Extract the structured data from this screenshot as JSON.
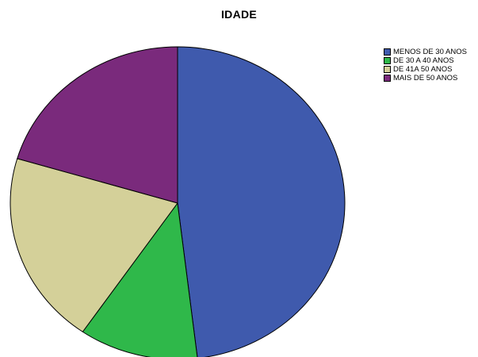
{
  "chart_data": {
    "type": "pie",
    "title": "IDADE",
    "slices": [
      {
        "label": "MENOS DE 30 ANOS",
        "value": 48.1,
        "color": "#3F5AAD"
      },
      {
        "label": "DE 30 A 40 ANOS",
        "value": 11.5,
        "color": "#2FB84A"
      },
      {
        "label": "DE 41A 50 ANOS",
        "value": 20.0,
        "color": "#D4D099"
      },
      {
        "label": "MAIS DE 50 ANOS",
        "value": 20.4,
        "color": "#7A2A7C"
      }
    ],
    "start_angle": "12 o'clock",
    "direction": "clockwise",
    "legend_position": "top-right"
  }
}
